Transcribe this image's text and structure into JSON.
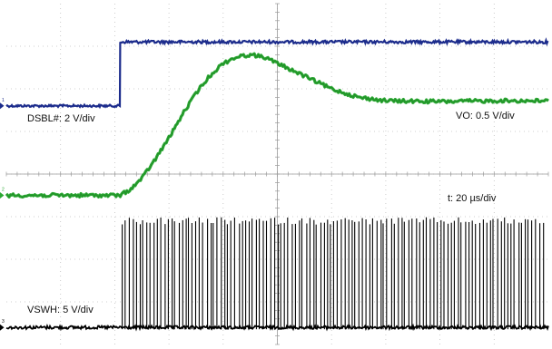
{
  "chart_data": {
    "type": "line",
    "title": "",
    "grid": true,
    "x": {
      "unit": "µs",
      "scale_label": "t: 20 µs/div",
      "divisions": 10,
      "range": [
        0,
        200
      ],
      "step_time": 42
    },
    "vertical_divisions": 8,
    "channels": [
      {
        "name": "DSBL#",
        "scale_label": "DSBL#: 2 V/div",
        "color": "#1c2c8c",
        "type": "step",
        "low_div": 5.6,
        "high_div": 7.1,
        "transition_us": 42
      },
      {
        "name": "VO",
        "scale_label": "VO: 0.5 V/div",
        "color": "#2aa832",
        "type": "line",
        "points": [
          [
            0,
            3.5
          ],
          [
            10,
            3.5
          ],
          [
            20,
            3.5
          ],
          [
            30,
            3.5
          ],
          [
            42,
            3.5
          ],
          [
            46,
            3.65
          ],
          [
            50,
            3.9
          ],
          [
            55,
            4.35
          ],
          [
            60,
            4.85
          ],
          [
            65,
            5.4
          ],
          [
            70,
            5.9
          ],
          [
            75,
            6.3
          ],
          [
            80,
            6.6
          ],
          [
            85,
            6.75
          ],
          [
            90,
            6.8
          ],
          [
            95,
            6.75
          ],
          [
            100,
            6.6
          ],
          [
            110,
            6.3
          ],
          [
            120,
            6.0
          ],
          [
            130,
            5.8
          ],
          [
            140,
            5.72
          ],
          [
            160,
            5.7
          ],
          [
            180,
            5.72
          ],
          [
            200,
            5.72
          ]
        ]
      },
      {
        "name": "VSWH",
        "scale_label": "VSWH: 5 V/div",
        "color": "#000000",
        "type": "pulse",
        "base_div": 0.4,
        "top_div": 2.9,
        "start_us": 42,
        "pulse_count": 120
      }
    ],
    "markers": [
      {
        "text": "1",
        "color": "#1c2c8c",
        "y_div": 5.6
      },
      {
        "text": "2",
        "color": "#2aa832",
        "y_div": 3.5
      },
      {
        "text": "3",
        "color": "#000000",
        "y_div": 0.4
      }
    ]
  }
}
